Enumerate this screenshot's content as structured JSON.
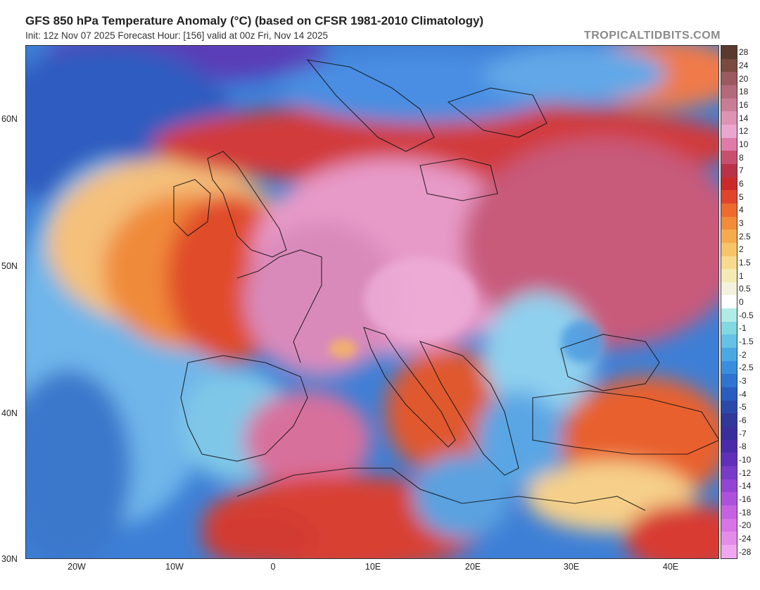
{
  "header": {
    "title": "GFS 850 hPa Temperature Anomaly (°C) (based on CFSR 1981-2010 Climatology)",
    "subtitle": "Init: 12z Nov 07 2025   Forecast Hour: [156]   valid at 00z Fri, Nov 14 2025",
    "brand": "TROPICALTIDBITS.COM"
  },
  "map": {
    "lat_labels": [
      "60N",
      "50N",
      "40N",
      "30N"
    ],
    "lon_labels": [
      "20W",
      "10W",
      "0",
      "10E",
      "20E",
      "30E",
      "40E"
    ],
    "extent": {
      "lon_min": -25,
      "lon_max": 45,
      "lat_min": 30,
      "lat_max": 65
    }
  },
  "colorbar": {
    "labels": [
      "28",
      "24",
      "20",
      "18",
      "16",
      "14",
      "12",
      "10",
      "8",
      "7",
      "6",
      "5",
      "4",
      "3",
      "2.5",
      "2",
      "1.5",
      "1",
      "0.5",
      "0",
      "-0.5",
      "-1",
      "-1.5",
      "-2",
      "-2.5",
      "-3",
      "-4",
      "-5",
      "-6",
      "-7",
      "-8",
      "-10",
      "-12",
      "-14",
      "-16",
      "-18",
      "-20",
      "-24",
      "-28"
    ],
    "colors": [
      "#5a3a2e",
      "#7a4a3e",
      "#9a5a5e",
      "#b46a7a",
      "#c87d95",
      "#de92b4",
      "#eaa6cf",
      "#e07aa8",
      "#c8506f",
      "#b83348",
      "#cc2a2a",
      "#e0452c",
      "#ee6a2e",
      "#f28b3a",
      "#f6aa4e",
      "#f8c46a",
      "#f8da8e",
      "#f6eab4",
      "#f4f2dc",
      "#ffffff",
      "#b0ece6",
      "#82d8e0",
      "#64c2e6",
      "#4aa8e2",
      "#3a8ede",
      "#2f74d0",
      "#2a5cc0",
      "#2a48aa",
      "#30389a",
      "#3a2e9a",
      "#4b2aa8",
      "#6030b8",
      "#7a3ac8",
      "#9444d2",
      "#ae52dc",
      "#c662e2",
      "#d874e6",
      "#e48cea",
      "#efa8ef"
    ]
  }
}
